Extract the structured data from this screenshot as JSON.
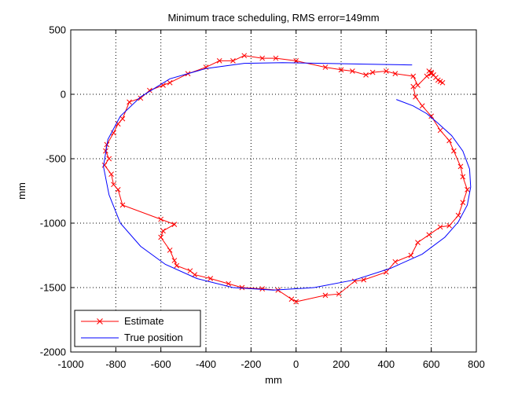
{
  "chart_data": {
    "type": "line",
    "title": "Minimum trace scheduling, RMS error=149mm",
    "xlabel": "mm",
    "ylabel": "mm",
    "xlim": [
      -1000,
      800
    ],
    "ylim": [
      -2000,
      500
    ],
    "xticks": [
      -1000,
      -800,
      -600,
      -400,
      -200,
      0,
      200,
      400,
      600,
      800
    ],
    "yticks": [
      -2000,
      -1500,
      -1000,
      -500,
      0,
      500
    ],
    "xtick_labels": [
      "-1000",
      "-800",
      "-600",
      "-400",
      "-200",
      "0",
      "200",
      "400",
      "600",
      "800"
    ],
    "ytick_labels": [
      "-2000",
      "-1500",
      "-1000",
      "-500",
      "0",
      "500"
    ],
    "grid": true,
    "legend_position": "bottom-left",
    "series": [
      {
        "name": "Estimate",
        "color": "#ff0000",
        "marker": "x",
        "points": [
          [
            650,
            90
          ],
          [
            640,
            100
          ],
          [
            630,
            110
          ],
          [
            620,
            130
          ],
          [
            610,
            150
          ],
          [
            600,
            170
          ],
          [
            590,
            180
          ],
          [
            600,
            160
          ],
          [
            580,
            140
          ],
          [
            540,
            70
          ],
          [
            520,
            140
          ],
          [
            440,
            160
          ],
          [
            400,
            180
          ],
          [
            340,
            170
          ],
          [
            310,
            150
          ],
          [
            250,
            180
          ],
          [
            200,
            190
          ],
          [
            130,
            210
          ],
          [
            0,
            260
          ],
          [
            -90,
            280
          ],
          [
            -150,
            280
          ],
          [
            -230,
            300
          ],
          [
            -280,
            260
          ],
          [
            -340,
            260
          ],
          [
            -400,
            210
          ],
          [
            -480,
            160
          ],
          [
            -560,
            90
          ],
          [
            -590,
            70
          ],
          [
            -650,
            30
          ],
          [
            -690,
            -30
          ],
          [
            -740,
            -60
          ],
          [
            -770,
            -190
          ],
          [
            -790,
            -230
          ],
          [
            -810,
            -300
          ],
          [
            -840,
            -390
          ],
          [
            -845,
            -440
          ],
          [
            -830,
            -500
          ],
          [
            -850,
            -550
          ],
          [
            -820,
            -620
          ],
          [
            -810,
            -700
          ],
          [
            -790,
            -740
          ],
          [
            -770,
            -860
          ],
          [
            -600,
            -970
          ],
          [
            -540,
            -1010
          ],
          [
            -590,
            -1060
          ],
          [
            -600,
            -1110
          ],
          [
            -560,
            -1210
          ],
          [
            -540,
            -1290
          ],
          [
            -530,
            -1330
          ],
          [
            -470,
            -1370
          ],
          [
            -450,
            -1400
          ],
          [
            -380,
            -1430
          ],
          [
            -300,
            -1470
          ],
          [
            -240,
            -1500
          ],
          [
            -150,
            -1510
          ],
          [
            -80,
            -1520
          ],
          [
            -20,
            -1590
          ],
          [
            0,
            -1610
          ],
          [
            130,
            -1560
          ],
          [
            190,
            -1550
          ],
          [
            260,
            -1450
          ],
          [
            300,
            -1440
          ],
          [
            400,
            -1380
          ],
          [
            440,
            -1300
          ],
          [
            510,
            -1250
          ],
          [
            540,
            -1150
          ],
          [
            590,
            -1090
          ],
          [
            640,
            -1030
          ],
          [
            680,
            -1020
          ],
          [
            720,
            -940
          ],
          [
            740,
            -840
          ],
          [
            760,
            -740
          ],
          [
            740,
            -640
          ],
          [
            730,
            -560
          ],
          [
            700,
            -440
          ],
          [
            680,
            -360
          ],
          [
            640,
            -280
          ],
          [
            600,
            -170
          ],
          [
            560,
            -90
          ],
          [
            530,
            -20
          ],
          [
            520,
            60
          ]
        ]
      },
      {
        "name": "True position",
        "color": "#0000ff",
        "marker": "none",
        "points": [
          [
            445,
            -40
          ],
          [
            520,
            -90
          ],
          [
            580,
            -150
          ],
          [
            630,
            -225
          ],
          [
            690,
            -320
          ],
          [
            740,
            -440
          ],
          [
            770,
            -580
          ],
          [
            775,
            -720
          ],
          [
            760,
            -860
          ],
          [
            720,
            -990
          ],
          [
            660,
            -1110
          ],
          [
            560,
            -1240
          ],
          [
            420,
            -1350
          ],
          [
            260,
            -1440
          ],
          [
            80,
            -1500
          ],
          [
            -100,
            -1520
          ],
          [
            -280,
            -1500
          ],
          [
            -440,
            -1430
          ],
          [
            -580,
            -1320
          ],
          [
            -690,
            -1180
          ],
          [
            -780,
            -1000
          ],
          [
            -830,
            -780
          ],
          [
            -855,
            -560
          ],
          [
            -835,
            -350
          ],
          [
            -780,
            -170
          ],
          [
            -690,
            -20
          ],
          [
            -560,
            120
          ],
          [
            -400,
            200
          ],
          [
            -230,
            240
          ],
          [
            -60,
            245
          ],
          [
            120,
            240
          ],
          [
            300,
            234
          ],
          [
            500,
            228
          ],
          [
            515,
            228
          ]
        ]
      }
    ]
  }
}
